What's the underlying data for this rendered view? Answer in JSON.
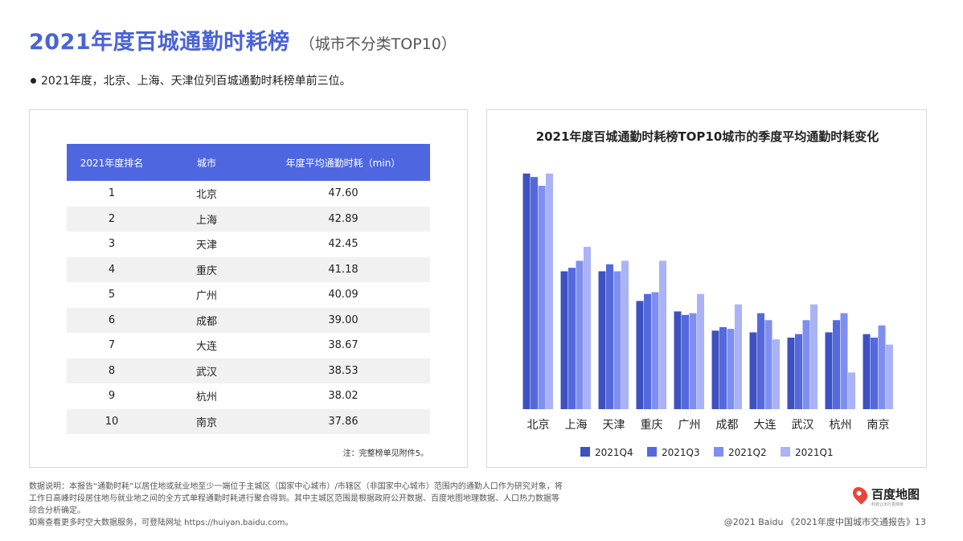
{
  "header": {
    "title": "2021年度百城通勤时耗榜",
    "subtitle": "（城市不分类TOP10）",
    "bullet": "2021年度，北京、上海、天津位列百城通勤时耗榜单前三位。"
  },
  "table": {
    "headers": [
      "2021年度排名",
      "城市",
      "年度平均通勤时耗（min）"
    ],
    "rows": [
      {
        "rank": "1",
        "city": "北京",
        "time": "47.60"
      },
      {
        "rank": "2",
        "city": "上海",
        "time": "42.89"
      },
      {
        "rank": "3",
        "city": "天津",
        "time": "42.45"
      },
      {
        "rank": "4",
        "city": "重庆",
        "time": "41.18"
      },
      {
        "rank": "5",
        "city": "广州",
        "time": "40.09"
      },
      {
        "rank": "6",
        "city": "成都",
        "time": "39.00"
      },
      {
        "rank": "7",
        "city": "大连",
        "time": "38.67"
      },
      {
        "rank": "8",
        "city": "武汉",
        "time": "38.53"
      },
      {
        "rank": "9",
        "city": "杭州",
        "time": "38.02"
      },
      {
        "rank": "10",
        "city": "南京",
        "time": "37.86"
      }
    ],
    "note": "注：完整榜单见附件5。"
  },
  "chart_data": {
    "type": "bar",
    "title": "2021年度百城通勤时耗榜TOP10城市的季度平均通勤时耗变化",
    "categories": [
      "北京",
      "上海",
      "天津",
      "重庆",
      "广州",
      "成都",
      "大连",
      "武汉",
      "杭州",
      "南京"
    ],
    "series": [
      {
        "name": "2021Q4",
        "color": "#3d51c0",
        "values": [
          48.0,
          42.4,
          42.4,
          40.7,
          40.1,
          39.0,
          38.9,
          38.6,
          38.9,
          38.8
        ]
      },
      {
        "name": "2021Q3",
        "color": "#5569de",
        "values": [
          47.8,
          42.6,
          42.8,
          41.1,
          39.9,
          39.2,
          40.0,
          38.8,
          39.6,
          38.6
        ]
      },
      {
        "name": "2021Q2",
        "color": "#7f8ff0",
        "values": [
          47.3,
          43.0,
          42.4,
          41.2,
          40.0,
          39.1,
          39.6,
          39.6,
          40.0,
          39.3
        ]
      },
      {
        "name": "2021Q1",
        "color": "#aab3f5",
        "values": [
          48.0,
          43.8,
          43.0,
          43.0,
          41.1,
          40.5,
          38.5,
          40.5,
          36.6,
          38.2
        ]
      }
    ],
    "ylim": [
      34.5,
      48.5
    ],
    "grid": false,
    "legend": "bottom"
  },
  "footer": {
    "lines": [
      "数据说明：本报告“通勤时耗”以居住地或就业地至少一端位于主城区（国家中心城市）/市辖区（非国家中心城市）范围内的通勤人口作为研究对象，将",
      "工作日高峰时段居住地与就业地之间的全方式单程通勤时耗进行聚合得到。其中主城区范围是根据政府公开数据、百度地图地理数据、人口热力数据等",
      "综合分析确定。",
      "如需查看更多时空大数据服务，可登陆网址 https://huiyan.baidu.com。"
    ],
    "logo_text": "百度地图",
    "logo_sub": "科技让出行更简单",
    "copyright": "@2021 Baidu 《2021年度中国城市交通报告》13"
  }
}
